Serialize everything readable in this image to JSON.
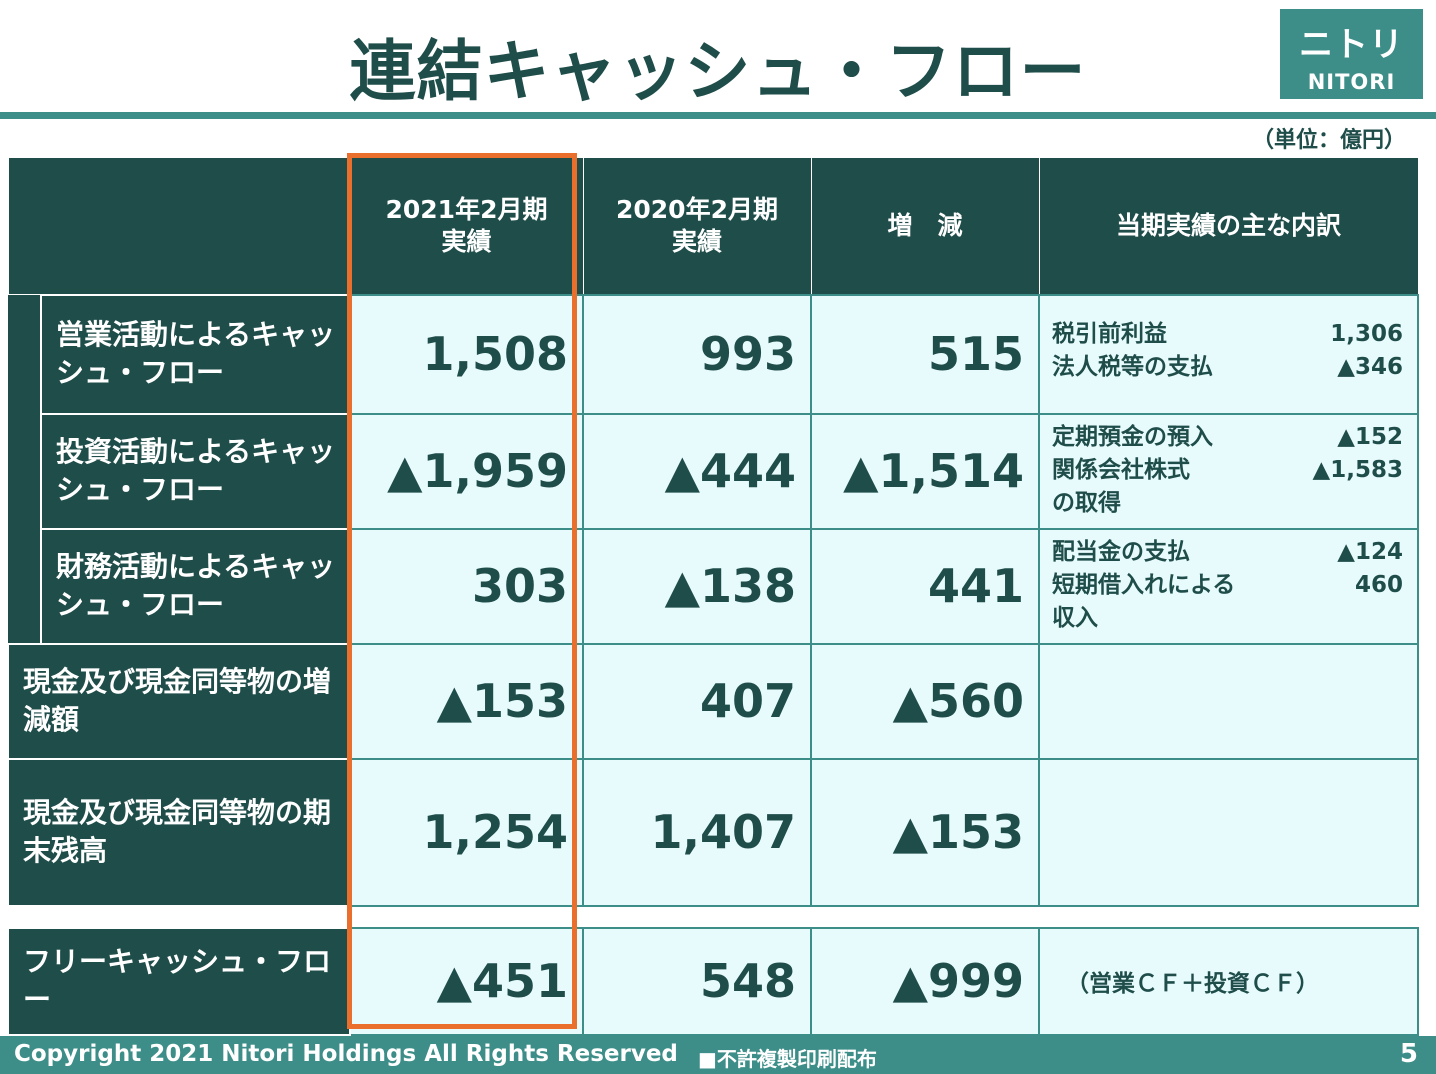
{
  "title": "連結キャッシュ・フロー",
  "logo": {
    "kana": "ニトリ",
    "roman": "NITORI"
  },
  "unit": "（単位：億円）",
  "columns": {
    "fy2021": {
      "line1": "2021年2月期",
      "line2": "実績"
    },
    "fy2020": {
      "line1": "2020年2月期",
      "line2": "実績"
    },
    "change": "増　減",
    "breakdown": "当期実績の主な内訳"
  },
  "rows": [
    {
      "label": "営業活動によるキャッシュ・フロー",
      "fy2021": "1,508",
      "fy2020": "993",
      "change": "515",
      "details": [
        {
          "text": "税引前利益",
          "value": "1,306"
        },
        {
          "text": "法人税等の支払",
          "value": "▲346"
        }
      ]
    },
    {
      "label": "投資活動によるキャッシュ・フロー",
      "fy2021": "▲1,959",
      "fy2020": "▲444",
      "change": "▲1,514",
      "details": [
        {
          "text": "定期預金の預入",
          "value": "▲152"
        },
        {
          "text": "関係会社株式",
          "value": "▲1,583"
        },
        {
          "text": "の取得",
          "value": ""
        }
      ]
    },
    {
      "label": "財務活動によるキャッシュ・フロー",
      "fy2021": "303",
      "fy2020": "▲138",
      "change": "441",
      "details": [
        {
          "text": "配当金の支払",
          "value": "▲124"
        },
        {
          "text": "短期借入れによる",
          "value": "460"
        },
        {
          "text": "収入",
          "value": ""
        }
      ]
    },
    {
      "label": "現金及び現金同等物の増減額",
      "fy2021": "▲153",
      "fy2020": "407",
      "change": "▲560"
    },
    {
      "label": "現金及び現金同等物の期末残高",
      "fy2021": "1,254",
      "fy2020": "1,407",
      "change": "▲153"
    },
    {
      "label": "フリーキャッシュ・フロー",
      "fy2021": "▲451",
      "fy2020": "548",
      "change": "▲999",
      "note": "（営業ＣＦ＋投資ＣＦ）"
    }
  ],
  "footer": {
    "copyright": "Copyright 2021 Nitori Holdings All Rights Reserved",
    "notice": "■不許複製印刷配布",
    "page": "5"
  },
  "colors": {
    "dark": "#1f4d4a",
    "accent": "#3d8e88",
    "highlight": "#ea6e2c",
    "cell": "#e8fbfc"
  }
}
